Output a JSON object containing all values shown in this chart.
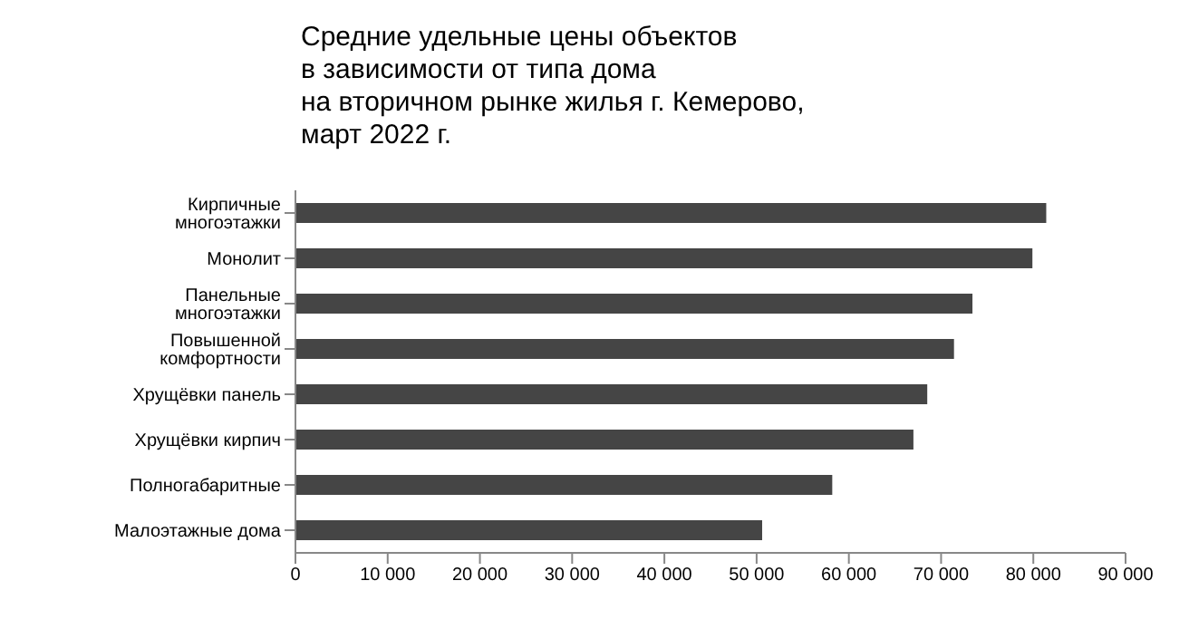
{
  "chart_data": {
    "type": "bar",
    "orientation": "horizontal",
    "title": "Средние удельные цены объектов\nв зависимости от типа дома\nна вторичном рынке жилья г. Кемерово,\nмарт 2022 г.",
    "categories": [
      "Кирпичные многоэтажки",
      "Монолит",
      "Панельные многоэтажки",
      "Повышенной комфортности",
      "Хрущёвки панель",
      "Хрущёвки кирпич",
      "Полногабаритные",
      "Малоэтажные дома"
    ],
    "values": [
      81400,
      79900,
      73400,
      71400,
      68500,
      67000,
      58200,
      50600
    ],
    "color": "#454545",
    "xlim": [
      0,
      90000
    ],
    "xticks": [
      0,
      {
        "value": 10000,
        "label": "10 000"
      },
      {
        "value": 20000,
        "label": "20 000"
      },
      {
        "value": 30000,
        "label": "30 000"
      },
      {
        "value": 40000,
        "label": "40 000"
      },
      {
        "value": 50000,
        "label": "50 000"
      },
      {
        "value": 60000,
        "label": "60 000"
      },
      {
        "value": 70000,
        "label": "70 000"
      },
      {
        "value": 80000,
        "label": "80 000"
      },
      {
        "value": 90000,
        "label": "90 000"
      }
    ],
    "grid": false,
    "legend": false
  }
}
